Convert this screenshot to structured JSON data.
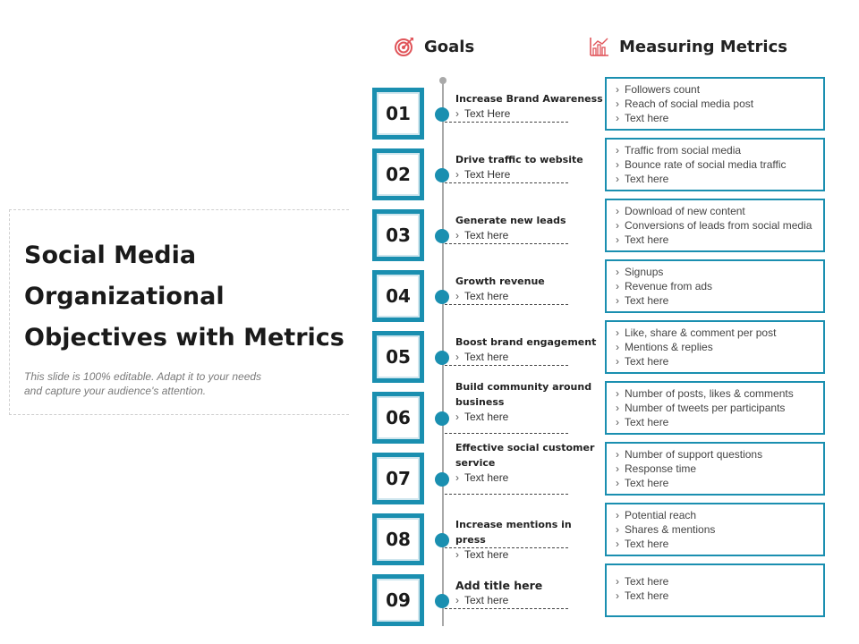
{
  "title": {
    "line1": "Social Media",
    "line2": "Organizational",
    "line3": "Objectives with Metrics",
    "subtitle": "This slide is 100% editable. Adapt it to your needs and capture your audience's attention."
  },
  "headers": {
    "goals": "Goals",
    "metrics": "Measuring Metrics",
    "goals_icon": "target-icon",
    "metrics_icon": "chart-icon"
  },
  "colors": {
    "accent": "#1a8fb0",
    "icon_red": "#e0555a"
  },
  "chevron": "›",
  "rows": [
    {
      "number": "01",
      "goal": "Increase Brand Awareness",
      "sub": "Text Here",
      "metrics": [
        "Followers count",
        "Reach of social media post",
        "Text here"
      ]
    },
    {
      "number": "02",
      "goal": "Drive traffic to website",
      "sub": "Text Here",
      "metrics": [
        "Traffic from social media",
        "Bounce rate of social media traffic",
        "Text here"
      ]
    },
    {
      "number": "03",
      "goal": "Generate new leads",
      "sub": "Text here",
      "metrics": [
        "Download of new content",
        "Conversions of leads from social media",
        "Text here"
      ]
    },
    {
      "number": "04",
      "goal": "Growth revenue",
      "sub": "Text here",
      "metrics": [
        "Signups",
        "Revenue from ads",
        "Text here"
      ]
    },
    {
      "number": "05",
      "goal": "Boost brand engagement",
      "sub": "Text here",
      "metrics": [
        "Like, share & comment per post",
        "Mentions & replies",
        "Text here"
      ]
    },
    {
      "number": "06",
      "goal": "Build community around business",
      "sub": "Text here",
      "metrics": [
        "Number of posts, likes & comments",
        "Number of tweets per participants",
        "Text here"
      ]
    },
    {
      "number": "07",
      "goal": "Effective social customer service",
      "sub": "Text here",
      "metrics": [
        "Number of support questions",
        "Response time",
        "Text here"
      ]
    },
    {
      "number": "08",
      "goal": "Increase mentions in press",
      "sub": "Text here",
      "metrics": [
        "Potential reach",
        "Shares & mentions",
        "Text here"
      ]
    },
    {
      "number": "09",
      "goal": "Add title here",
      "sub": "Text here",
      "metrics": [
        "Text here",
        "Text here"
      ]
    }
  ]
}
